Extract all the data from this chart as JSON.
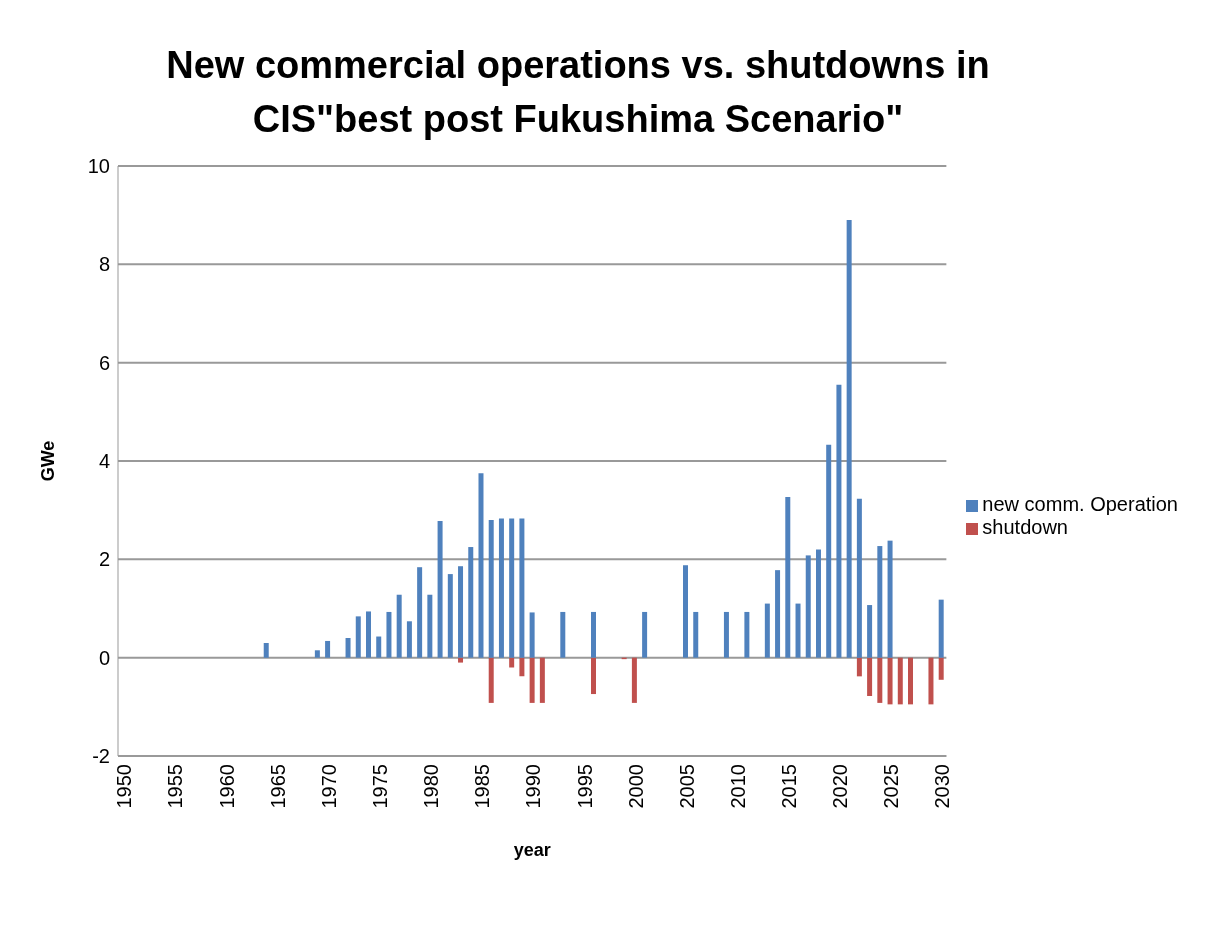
{
  "chart_data": {
    "type": "bar",
    "title": "New commercial operations vs. shutdowns in CIS\"best post Fukushima Scenario\"",
    "xlabel": "year",
    "ylabel": "GWe",
    "categories": [
      "1950",
      null,
      null,
      null,
      null,
      "1955",
      null,
      null,
      null,
      null,
      "1960",
      null,
      null,
      null,
      null,
      "1965",
      null,
      null,
      null,
      null,
      "1970",
      null,
      null,
      null,
      null,
      "1975",
      null,
      null,
      null,
      null,
      "1980",
      null,
      null,
      null,
      null,
      "1985",
      null,
      null,
      null,
      null,
      "1990",
      null,
      null,
      null,
      null,
      "1995",
      null,
      null,
      null,
      null,
      "2000",
      null,
      null,
      null,
      null,
      "2005",
      null,
      null,
      null,
      null,
      "2010",
      null,
      null,
      null,
      null,
      "2015",
      null,
      null,
      null,
      null,
      "2020",
      null,
      null,
      null,
      null,
      "2025",
      null,
      null,
      null,
      null,
      "2030"
    ],
    "series": [
      {
        "name": "shutdown",
        "color": "#c0504d",
        "values": [
          0,
          0,
          0,
          0,
          0,
          0,
          0,
          0,
          0,
          0,
          0,
          0,
          0,
          0,
          0,
          0,
          0,
          0,
          0,
          0,
          0,
          0,
          0,
          0,
          0,
          0,
          0,
          0,
          0,
          0,
          0,
          0,
          0,
          -0.1,
          0,
          0,
          -0.92,
          0,
          -0.2,
          -0.38,
          -0.92,
          -0.92,
          0,
          0,
          0,
          0,
          -0.74,
          0,
          0,
          -0.03,
          -0.92,
          0,
          0,
          0,
          0,
          0,
          0,
          0,
          0,
          0,
          0,
          0,
          0,
          0,
          0,
          0,
          0,
          0,
          0,
          0,
          0,
          0,
          -0.38,
          -0.78,
          -0.92,
          -0.95,
          -0.95,
          -0.95,
          0,
          -0.95,
          -0.45
        ]
      },
      {
        "name": "new comm. Operation",
        "color": "#4f81bd",
        "values": [
          0,
          0,
          0,
          0,
          0,
          0,
          0,
          0,
          0,
          0,
          0,
          0,
          0,
          0,
          0.3,
          0,
          0,
          0,
          0,
          0.15,
          0.34,
          0,
          0.4,
          0.84,
          0.94,
          0.43,
          0.93,
          1.28,
          0.74,
          1.84,
          1.28,
          2.78,
          1.7,
          1.86,
          2.25,
          3.75,
          2.8,
          2.83,
          2.83,
          2.83,
          0.92,
          0,
          0,
          0.93,
          0,
          0,
          0.93,
          0,
          0,
          0,
          0,
          0.93,
          0,
          0,
          0,
          1.88,
          0.93,
          0,
          0,
          0.93,
          0,
          0.93,
          0,
          1.1,
          1.78,
          3.27,
          1.1,
          2.08,
          2.2,
          4.33,
          5.55,
          8.9,
          3.23,
          1.07,
          2.27,
          2.38,
          0,
          0,
          0,
          0,
          1.18
        ]
      }
    ],
    "stacked": true,
    "ylim": [
      -2,
      10
    ],
    "yticks": [
      -2,
      0,
      2,
      4,
      6,
      8,
      10
    ],
    "grid": "y",
    "legend": "right"
  }
}
